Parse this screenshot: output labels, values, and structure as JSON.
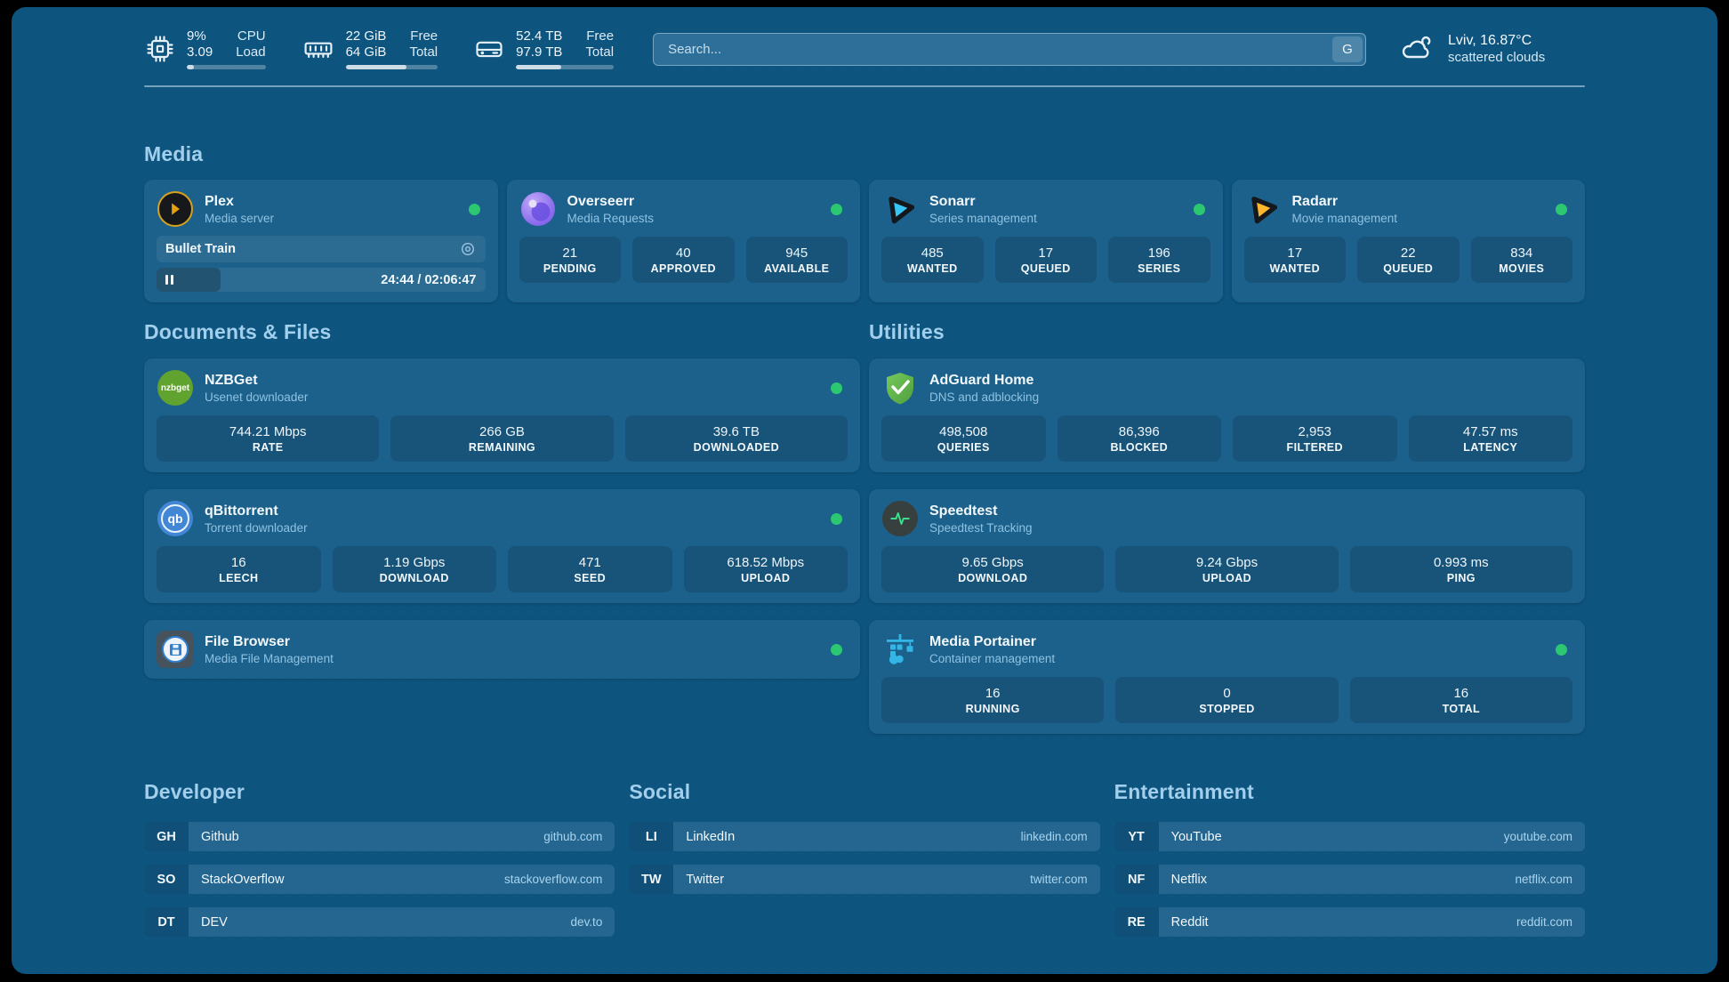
{
  "colors": {
    "status_online": "#2bc871",
    "panel_bg": "#0d547f",
    "heading": "#a2cfec"
  },
  "icons": {
    "cpu": "chip-icon",
    "memory": "ram-icon",
    "storage": "drive-icon",
    "weather": "cloud-icon",
    "pause": "pause-icon",
    "now_playing_settings": "lens-icon"
  },
  "header": {
    "cpu": {
      "value_top": "9%",
      "label_top": "CPU",
      "value_bottom": "3.09",
      "label_bottom": "Load",
      "progress_pct": 9
    },
    "memory": {
      "value_top": "22 GiB",
      "label_top": "Free",
      "value_bottom": "64 GiB",
      "label_bottom": "Total",
      "progress_pct": 66
    },
    "storage": {
      "value_top": "52.4 TB",
      "label_top": "Free",
      "value_bottom": "97.9 TB",
      "label_bottom": "Total",
      "progress_pct": 46
    },
    "search": {
      "placeholder": "Search...",
      "engine_button": "G"
    },
    "weather": {
      "location": "Lviv, 16.87°C",
      "condition": "scattered clouds"
    }
  },
  "section_titles": {
    "media": "Media",
    "documents": "Documents & Files",
    "utilities": "Utilities"
  },
  "apps": {
    "plex": {
      "name": "Plex",
      "desc": "Media server",
      "player": {
        "title": "Bullet Train",
        "time": "24:44 / 02:06:47",
        "progress_pct": 19.5
      }
    },
    "overseerr": {
      "name": "Overseerr",
      "desc": "Media Requests",
      "stats": [
        {
          "value": "21",
          "label": "PENDING"
        },
        {
          "value": "40",
          "label": "APPROVED"
        },
        {
          "value": "945",
          "label": "AVAILABLE"
        }
      ]
    },
    "sonarr": {
      "name": "Sonarr",
      "desc": "Series management",
      "stats": [
        {
          "value": "485",
          "label": "WANTED"
        },
        {
          "value": "17",
          "label": "QUEUED"
        },
        {
          "value": "196",
          "label": "SERIES"
        }
      ]
    },
    "radarr": {
      "name": "Radarr",
      "desc": "Movie management",
      "stats": [
        {
          "value": "17",
          "label": "WANTED"
        },
        {
          "value": "22",
          "label": "QUEUED"
        },
        {
          "value": "834",
          "label": "MOVIES"
        }
      ]
    },
    "nzbget": {
      "name": "NZBGet",
      "desc": "Usenet downloader",
      "icon_text": "nzbget",
      "stats": [
        {
          "value": "744.21 Mbps",
          "label": "RATE"
        },
        {
          "value": "266 GB",
          "label": "REMAINING"
        },
        {
          "value": "39.6 TB",
          "label": "DOWNLOADED"
        }
      ]
    },
    "qbittorrent": {
      "name": "qBittorrent",
      "desc": "Torrent downloader",
      "icon_text": "qb",
      "stats": [
        {
          "value": "16",
          "label": "LEECH"
        },
        {
          "value": "1.19 Gbps",
          "label": "DOWNLOAD"
        },
        {
          "value": "471",
          "label": "SEED"
        },
        {
          "value": "618.52 Mbps",
          "label": "UPLOAD"
        }
      ]
    },
    "filebrowser": {
      "name": "File Browser",
      "desc": "Media File Management"
    },
    "adguard": {
      "name": "AdGuard Home",
      "desc": "DNS and adblocking",
      "stats": [
        {
          "value": "498,508",
          "label": "QUERIES"
        },
        {
          "value": "86,396",
          "label": "BLOCKED"
        },
        {
          "value": "2,953",
          "label": "FILTERED"
        },
        {
          "value": "47.57 ms",
          "label": "LATENCY"
        }
      ]
    },
    "speedtest": {
      "name": "Speedtest",
      "desc": "Speedtest Tracking",
      "stats": [
        {
          "value": "9.65 Gbps",
          "label": "DOWNLOAD"
        },
        {
          "value": "9.24 Gbps",
          "label": "UPLOAD"
        },
        {
          "value": "0.993 ms",
          "label": "PING"
        }
      ]
    },
    "portainer": {
      "name": "Media Portainer",
      "desc": "Container management",
      "stats": [
        {
          "value": "16",
          "label": "RUNNING"
        },
        {
          "value": "0",
          "label": "STOPPED"
        },
        {
          "value": "16",
          "label": "TOTAL"
        }
      ]
    }
  },
  "link_sections": {
    "developer": {
      "title": "Developer",
      "links": [
        {
          "abbr": "GH",
          "name": "Github",
          "url": "github.com"
        },
        {
          "abbr": "SO",
          "name": "StackOverflow",
          "url": "stackoverflow.com"
        },
        {
          "abbr": "DT",
          "name": "DEV",
          "url": "dev.to"
        }
      ]
    },
    "social": {
      "title": "Social",
      "links": [
        {
          "abbr": "LI",
          "name": "LinkedIn",
          "url": "linkedin.com"
        },
        {
          "abbr": "TW",
          "name": "Twitter",
          "url": "twitter.com"
        }
      ]
    },
    "entertainment": {
      "title": "Entertainment",
      "links": [
        {
          "abbr": "YT",
          "name": "YouTube",
          "url": "youtube.com"
        },
        {
          "abbr": "NF",
          "name": "Netflix",
          "url": "netflix.com"
        },
        {
          "abbr": "RE",
          "name": "Reddit",
          "url": "reddit.com"
        }
      ]
    }
  }
}
